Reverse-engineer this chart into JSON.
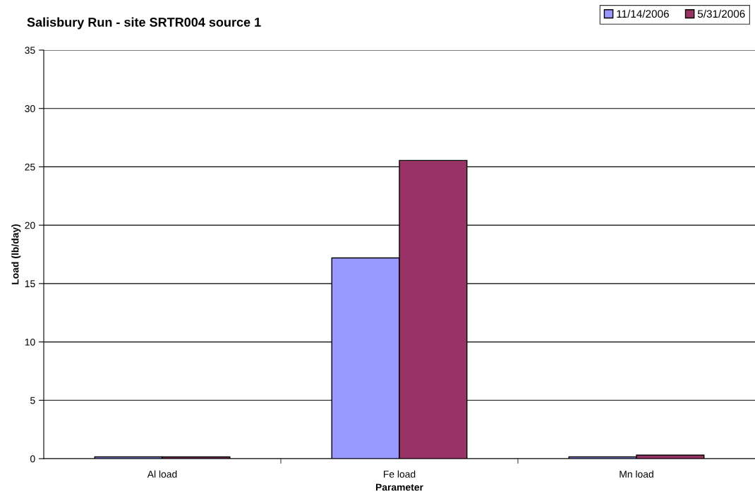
{
  "chart_data": {
    "type": "bar",
    "title": "Salisbury Run - site SRTR004 source 1",
    "xlabel": "Parameter",
    "ylabel": "Load (lb/day)",
    "categories": [
      "Al load",
      "Fe load",
      "Mn load"
    ],
    "series": [
      {
        "name": "11/14/2006",
        "color": "#9999ff",
        "values": [
          0.15,
          17.2,
          0.15
        ]
      },
      {
        "name": "5/31/2006",
        "color": "#993366",
        "values": [
          0.15,
          25.55,
          0.3
        ]
      }
    ],
    "ylim": [
      0,
      35
    ],
    "yticks": [
      0,
      5,
      10,
      15,
      20,
      25,
      30,
      35
    ],
    "grid": "y",
    "legend": "top right"
  }
}
